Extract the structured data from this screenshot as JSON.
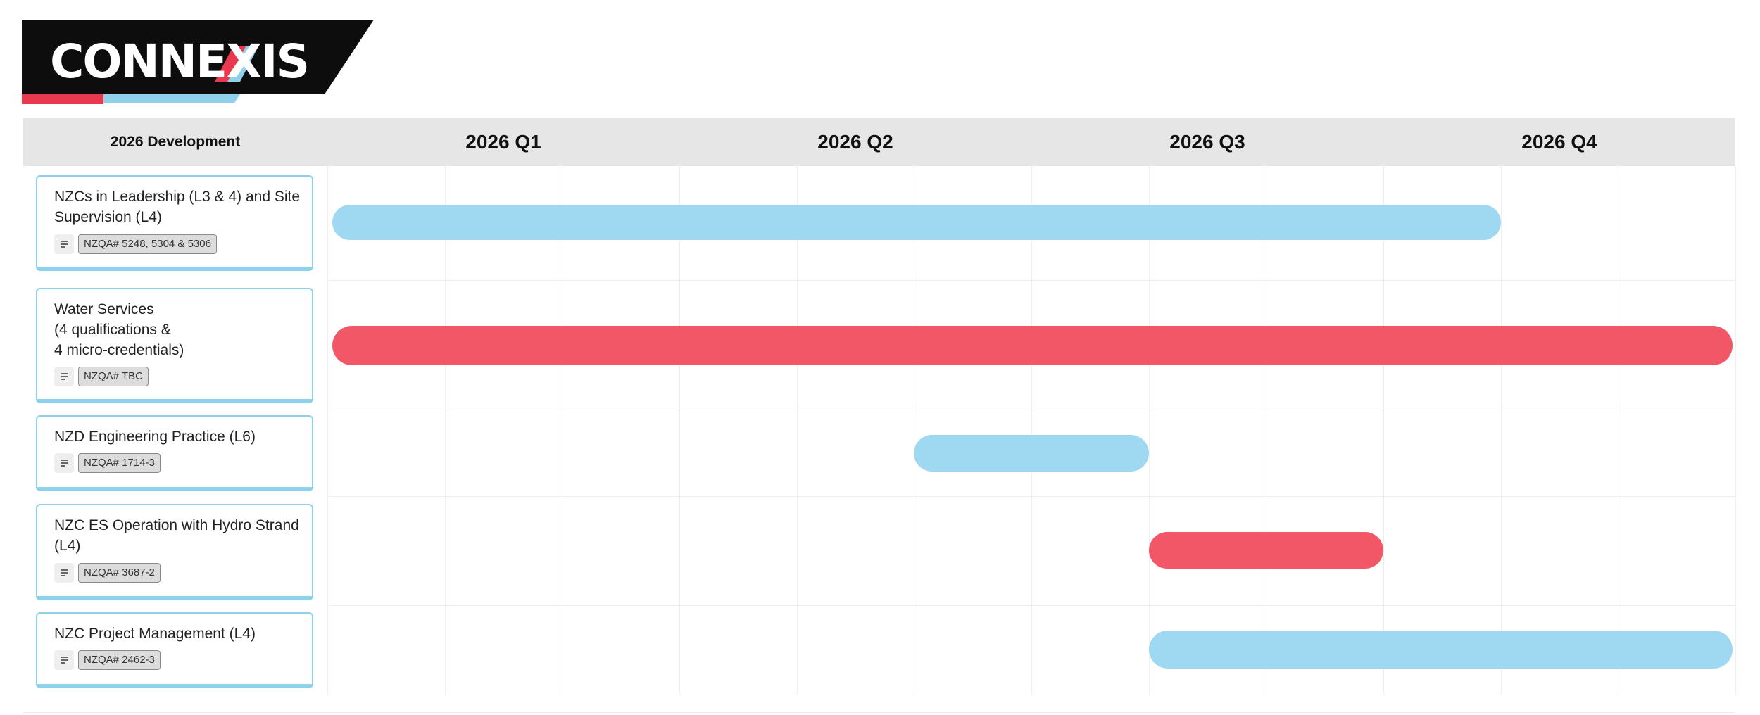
{
  "logo": {
    "text": "CONNEXIS"
  },
  "chart_data": {
    "type": "gantt",
    "title": "2026 Development",
    "quarters": [
      "2026 Q1",
      "2026 Q2",
      "2026 Q3",
      "2026 Q4"
    ],
    "x_unit": "months of 2026 (0 = start of Jan, 12 = end of Dec)",
    "xlim": [
      0,
      12
    ],
    "tasks": [
      {
        "label": "NZCs in Leadership (L3 & 4) and Site Supervision (L4)",
        "tag": "NZQA# 5248, 5304 & 5306",
        "start": 0,
        "end": 10,
        "color": "#9fd8f1"
      },
      {
        "label": "Water Services\n(4 qualifications &\n4 micro-credentials)",
        "tag": "NZQA# TBC",
        "start": 0,
        "end": 12,
        "color": "#f15767"
      },
      {
        "label": "NZD Engineering Practice (L6)",
        "tag": "NZQA# 1714-3",
        "start": 5,
        "end": 7,
        "color": "#9fd8f1"
      },
      {
        "label": "NZC ES Operation with Hydro Strand (L4)",
        "tag": "NZQA# 3687-2",
        "start": 7,
        "end": 9,
        "color": "#f15767"
      },
      {
        "label": "NZC Project Management (L4)",
        "tag": "NZQA# 2462-3",
        "start": 7,
        "end": 12,
        "color": "#9fd8f1"
      }
    ]
  }
}
